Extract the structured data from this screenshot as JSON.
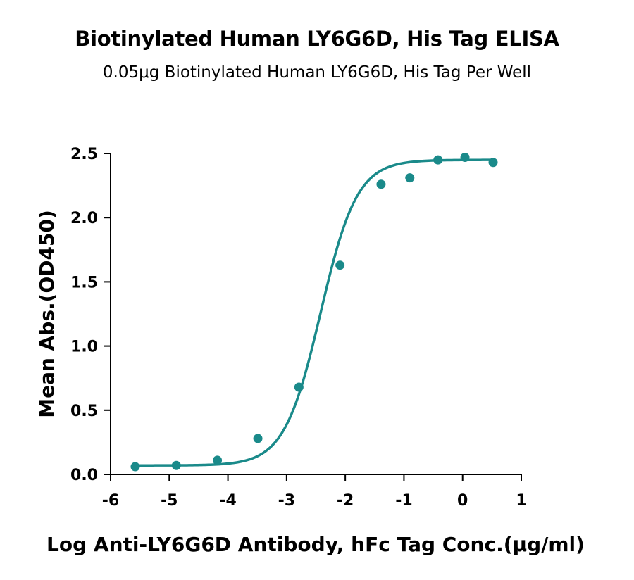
{
  "chart_data": {
    "type": "scatter",
    "title": "Biotinylated Human LY6G6D, His Tag ELISA",
    "subtitle": "0.05μg Biotinylated Human LY6G6D, His Tag Per Well",
    "xlabel": "Log Anti-LY6G6D Antibody, hFc Tag Conc.(μg/ml)",
    "ylabel": "Mean Abs.(OD450)",
    "xlim": [
      -6,
      1
    ],
    "ylim": [
      0,
      2.5
    ],
    "x_ticks": [
      "-6",
      "-5",
      "-4",
      "-3",
      "-2",
      "-1",
      "0",
      "1"
    ],
    "y_ticks": [
      "0.0",
      "0.5",
      "1.0",
      "1.5",
      "2.0",
      "2.5"
    ],
    "grid": false,
    "color": "#1a8a8a",
    "series": [
      {
        "x": [
          -5.58,
          -4.88,
          -4.18,
          -3.49,
          -2.79,
          -2.09,
          -1.39,
          -0.9,
          -0.42,
          0.04,
          0.52
        ],
        "y": [
          0.06,
          0.07,
          0.11,
          0.28,
          0.68,
          1.63,
          2.26,
          2.31,
          2.45,
          2.47,
          2.43
        ]
      }
    ],
    "fit": {
      "model": "4PL",
      "bottom": 0.07,
      "top": 2.45,
      "log_ec50": -2.42,
      "hill_slope": 1.4
    }
  }
}
